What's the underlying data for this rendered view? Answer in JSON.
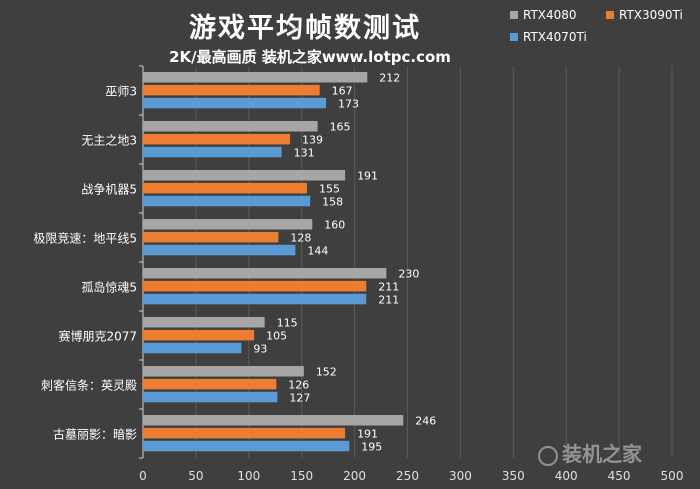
{
  "chart_data": {
    "type": "bar",
    "orientation": "horizontal",
    "title": "游戏平均帧数测试",
    "subtitle": "2K/最高画质  装机之家www.lotpc.com",
    "categories": [
      "巫师3",
      "无主之地3",
      "战争机器5",
      "极限竞速：地平线5",
      "孤岛惊魂5",
      "赛博朋克2077",
      "刺客信条：英灵殿",
      "古墓丽影：暗影"
    ],
    "series": [
      {
        "name": "RTX4080",
        "color": "#a6a6a6",
        "values": [
          212,
          165,
          191,
          160,
          230,
          115,
          152,
          246
        ]
      },
      {
        "name": "RTX3090Ti",
        "color": "#ed7d31",
        "values": [
          167,
          139,
          155,
          128,
          211,
          105,
          126,
          191
        ]
      },
      {
        "name": "RTX4070Ti",
        "color": "#5b9bd5",
        "values": [
          173,
          131,
          158,
          144,
          211,
          93,
          127,
          195
        ]
      }
    ],
    "xlim": [
      0,
      500
    ],
    "xticks": [
      0,
      50,
      100,
      150,
      200,
      250,
      300,
      350,
      400,
      450,
      500
    ],
    "grid": true,
    "legend_position": "top-right"
  },
  "watermark": "装机之家"
}
